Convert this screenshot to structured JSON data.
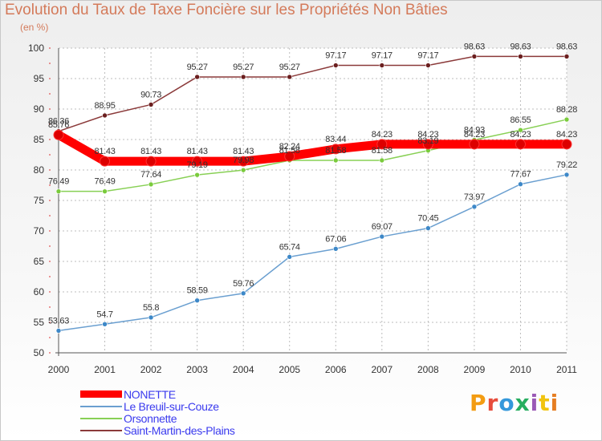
{
  "title": "Evolution du Taux de Taxe Foncière sur les Propriétés Non Bâties",
  "unit_label": "(en %)",
  "logo_text": "Proxiti",
  "logo_colors": [
    "#f39c12",
    "#e74c3c",
    "#3498db",
    "#27ae60",
    "#9b59b6",
    "#f1c40f",
    "#e67e22"
  ],
  "chart_data": {
    "type": "line",
    "title": "Evolution du Taux de Taxe Foncière sur les Propriétés Non Bâties",
    "ylabel": "(en %)",
    "xlabel": "",
    "x": [
      "2000",
      "2001",
      "2002",
      "2003",
      "2004",
      "2005",
      "2006",
      "2007",
      "2008",
      "2009",
      "2010",
      "2011"
    ],
    "ylim": [
      50,
      100
    ],
    "yticks": [
      "50",
      "55",
      "60",
      "65",
      "70",
      "75",
      "80",
      "85",
      "90",
      "95",
      "100"
    ],
    "grid": true,
    "legend_position": "bottom-left",
    "series": [
      {
        "name": "NONETTE",
        "color": "#ff0000",
        "labels": [
          "85.76",
          "81.43",
          "81.43",
          "81.43",
          "81.43",
          "82.24",
          "83.44",
          "84.23",
          "84.23",
          "84.23",
          "84.23",
          "84.23"
        ],
        "values": [
          85.76,
          81.43,
          81.43,
          81.43,
          81.43,
          82.24,
          83.44,
          84.23,
          84.23,
          84.23,
          84.23,
          84.23
        ]
      },
      {
        "name": "Le Breuil-sur-Couze",
        "color": "#6a9fd0",
        "labels": [
          "53.63",
          "54.7",
          "55.8",
          "58.59",
          "59.76",
          "65.74",
          "67.06",
          "69.07",
          "70.45",
          "73.97",
          "77.67",
          "79.22"
        ],
        "values": [
          53.63,
          54.7,
          55.8,
          58.59,
          59.76,
          65.74,
          67.06,
          69.07,
          70.45,
          73.97,
          77.67,
          79.22
        ]
      },
      {
        "name": "Orsonnette",
        "color": "#88d055",
        "labels": [
          "76.49",
          "76.49",
          "77.64",
          "79.19",
          "79.98",
          "81.58",
          "81.58",
          "81.58",
          "83.19",
          "84.93",
          "86.55",
          "88.28"
        ],
        "values": [
          76.49,
          76.49,
          77.64,
          79.19,
          79.98,
          81.58,
          81.58,
          81.58,
          83.19,
          84.93,
          86.55,
          88.28
        ]
      },
      {
        "name": "Saint-Martin-des-Plains",
        "color": "#8b3a3a",
        "labels": [
          "86.36",
          "88.95",
          "90.73",
          "95.27",
          "95.27",
          "95.27",
          "97.17",
          "97.17",
          "97.17",
          "98.63",
          "98.63",
          "98.63"
        ],
        "values": [
          86.36,
          88.95,
          90.73,
          95.27,
          95.27,
          95.27,
          97.17,
          97.17,
          97.17,
          98.63,
          98.63,
          98.63
        ]
      }
    ]
  }
}
